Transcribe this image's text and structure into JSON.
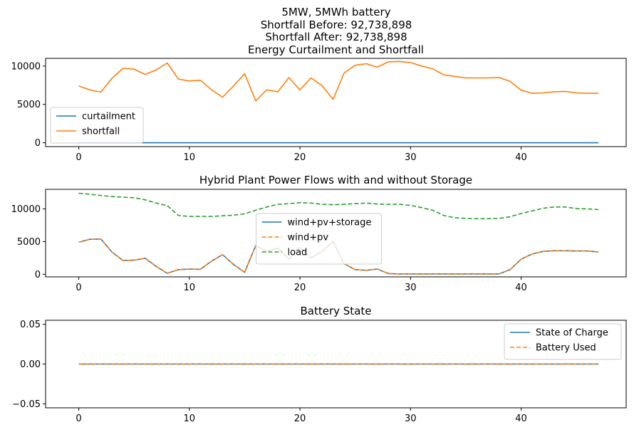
{
  "figure": {
    "suptitle_lines": [
      "5MW, 5MWh battery",
      "Shortfall Before: 92,738,898",
      "Shortfall After: 92,738,898"
    ]
  },
  "chart_data": [
    {
      "type": "line",
      "title": "Energy Curtailment and Shortfall",
      "xlim": [
        -3,
        49.5
      ],
      "ylim": [
        -500,
        11000
      ],
      "xticks": [
        0,
        10,
        20,
        30,
        40
      ],
      "yticks": [
        0,
        5000,
        10000
      ],
      "legend_position": "lower-left",
      "series": [
        {
          "name": "curtailment",
          "color": "#1f77b4",
          "dash": "solid",
          "x": [
            0,
            47
          ],
          "y": [
            0,
            0
          ]
        },
        {
          "name": "shortfall",
          "color": "#ff7f0e",
          "dash": "solid",
          "x": [
            0,
            1,
            2,
            3,
            4,
            5,
            6,
            7,
            8,
            9,
            10,
            11,
            12,
            13,
            14,
            15,
            16,
            17,
            18,
            19,
            20,
            21,
            22,
            23,
            24,
            25,
            26,
            27,
            28,
            29,
            30,
            31,
            32,
            33,
            34,
            35,
            36,
            37,
            38,
            39,
            40,
            41,
            42,
            43,
            44,
            45,
            46,
            47
          ],
          "y": [
            7400,
            6900,
            6600,
            8400,
            9700,
            9600,
            8900,
            9500,
            10400,
            8300,
            8050,
            8150,
            6900,
            5950,
            7400,
            9000,
            5450,
            6900,
            6650,
            8500,
            6900,
            8450,
            7450,
            5650,
            9100,
            10100,
            10300,
            9850,
            10550,
            10600,
            10450,
            10000,
            9650,
            8850,
            8650,
            8450,
            8450,
            8450,
            8500,
            8000,
            6850,
            6450,
            6500,
            6650,
            6700,
            6500,
            6450,
            6450
          ]
        }
      ]
    },
    {
      "type": "line",
      "title": "Hybrid Plant Power Flows with and without Storage",
      "xlim": [
        -3,
        49.5
      ],
      "ylim": [
        -400,
        13000
      ],
      "xticks": [
        0,
        10,
        20,
        30,
        40
      ],
      "yticks": [
        0,
        5000,
        10000
      ],
      "legend_position": "center",
      "series": [
        {
          "name": "wind+pv+storage",
          "color": "#1f77b4",
          "dash": "solid",
          "x": [
            0,
            1,
            2,
            3,
            4,
            5,
            6,
            7,
            8,
            9,
            10,
            11,
            12,
            13,
            14,
            15,
            16,
            17,
            18,
            19,
            20,
            21,
            22,
            23,
            24,
            25,
            26,
            27,
            28,
            29,
            30,
            31,
            32,
            33,
            34,
            35,
            36,
            37,
            38,
            39,
            40,
            41,
            42,
            43,
            44,
            45,
            46,
            47
          ],
          "y": [
            4900,
            5350,
            5400,
            3400,
            2100,
            2150,
            2450,
            1200,
            150,
            700,
            800,
            750,
            2000,
            3000,
            1500,
            300,
            4400,
            3500,
            4000,
            2300,
            4100,
            2500,
            3500,
            5000,
            1600,
            700,
            600,
            800,
            100,
            50,
            50,
            50,
            50,
            50,
            50,
            50,
            50,
            50,
            50,
            700,
            2300,
            3100,
            3500,
            3600,
            3600,
            3550,
            3550,
            3400
          ]
        },
        {
          "name": "wind+pv",
          "color": "#ff7f0e",
          "dash": "dashed",
          "x": [
            0,
            1,
            2,
            3,
            4,
            5,
            6,
            7,
            8,
            9,
            10,
            11,
            12,
            13,
            14,
            15,
            16,
            17,
            18,
            19,
            20,
            21,
            22,
            23,
            24,
            25,
            26,
            27,
            28,
            29,
            30,
            31,
            32,
            33,
            34,
            35,
            36,
            37,
            38,
            39,
            40,
            41,
            42,
            43,
            44,
            45,
            46,
            47
          ],
          "y": [
            4900,
            5350,
            5400,
            3400,
            2100,
            2150,
            2450,
            1200,
            150,
            700,
            800,
            750,
            2000,
            3000,
            1500,
            300,
            4400,
            3500,
            4000,
            2300,
            4100,
            2500,
            3500,
            5000,
            1600,
            700,
            600,
            800,
            100,
            50,
            50,
            50,
            50,
            50,
            50,
            50,
            50,
            50,
            50,
            700,
            2300,
            3100,
            3500,
            3600,
            3600,
            3550,
            3550,
            3400
          ]
        },
        {
          "name": "load",
          "color": "#2ca02c",
          "dash": "dashed",
          "x": [
            0,
            1,
            2,
            3,
            4,
            5,
            6,
            7,
            8,
            9,
            10,
            11,
            12,
            13,
            14,
            15,
            16,
            17,
            18,
            19,
            20,
            21,
            22,
            23,
            24,
            25,
            26,
            27,
            28,
            29,
            30,
            31,
            32,
            33,
            34,
            35,
            36,
            37,
            38,
            39,
            40,
            41,
            42,
            43,
            44,
            45,
            46,
            47
          ],
          "y": [
            12400,
            12250,
            12050,
            11900,
            11800,
            11700,
            11400,
            10900,
            10500,
            9000,
            8850,
            8850,
            8850,
            8950,
            9050,
            9250,
            9800,
            10300,
            10700,
            10800,
            10950,
            10900,
            10700,
            10650,
            10700,
            10800,
            10900,
            10750,
            10700,
            10700,
            10550,
            10200,
            9800,
            9000,
            8650,
            8550,
            8500,
            8500,
            8550,
            8800,
            9300,
            9700,
            10100,
            10300,
            10300,
            10050,
            10000,
            9900
          ]
        }
      ]
    },
    {
      "type": "line",
      "title": "Battery State",
      "xlim": [
        -3,
        49.5
      ],
      "ylim": [
        -0.055,
        0.055
      ],
      "xticks": [
        0,
        10,
        20,
        30,
        40
      ],
      "yticks": [
        -0.05,
        0.0,
        0.05
      ],
      "ytick_labels": [
        "−0.05",
        "0.00",
        "0.05"
      ],
      "legend_position": "top-right",
      "series": [
        {
          "name": "State of Charge",
          "color": "#1f77b4",
          "dash": "solid",
          "x": [
            0,
            47
          ],
          "y": [
            0,
            0
          ]
        },
        {
          "name": "Battery Used",
          "color": "#ff7f0e",
          "dash": "dashed",
          "x": [
            0,
            47
          ],
          "y": [
            0,
            0
          ]
        }
      ]
    }
  ]
}
